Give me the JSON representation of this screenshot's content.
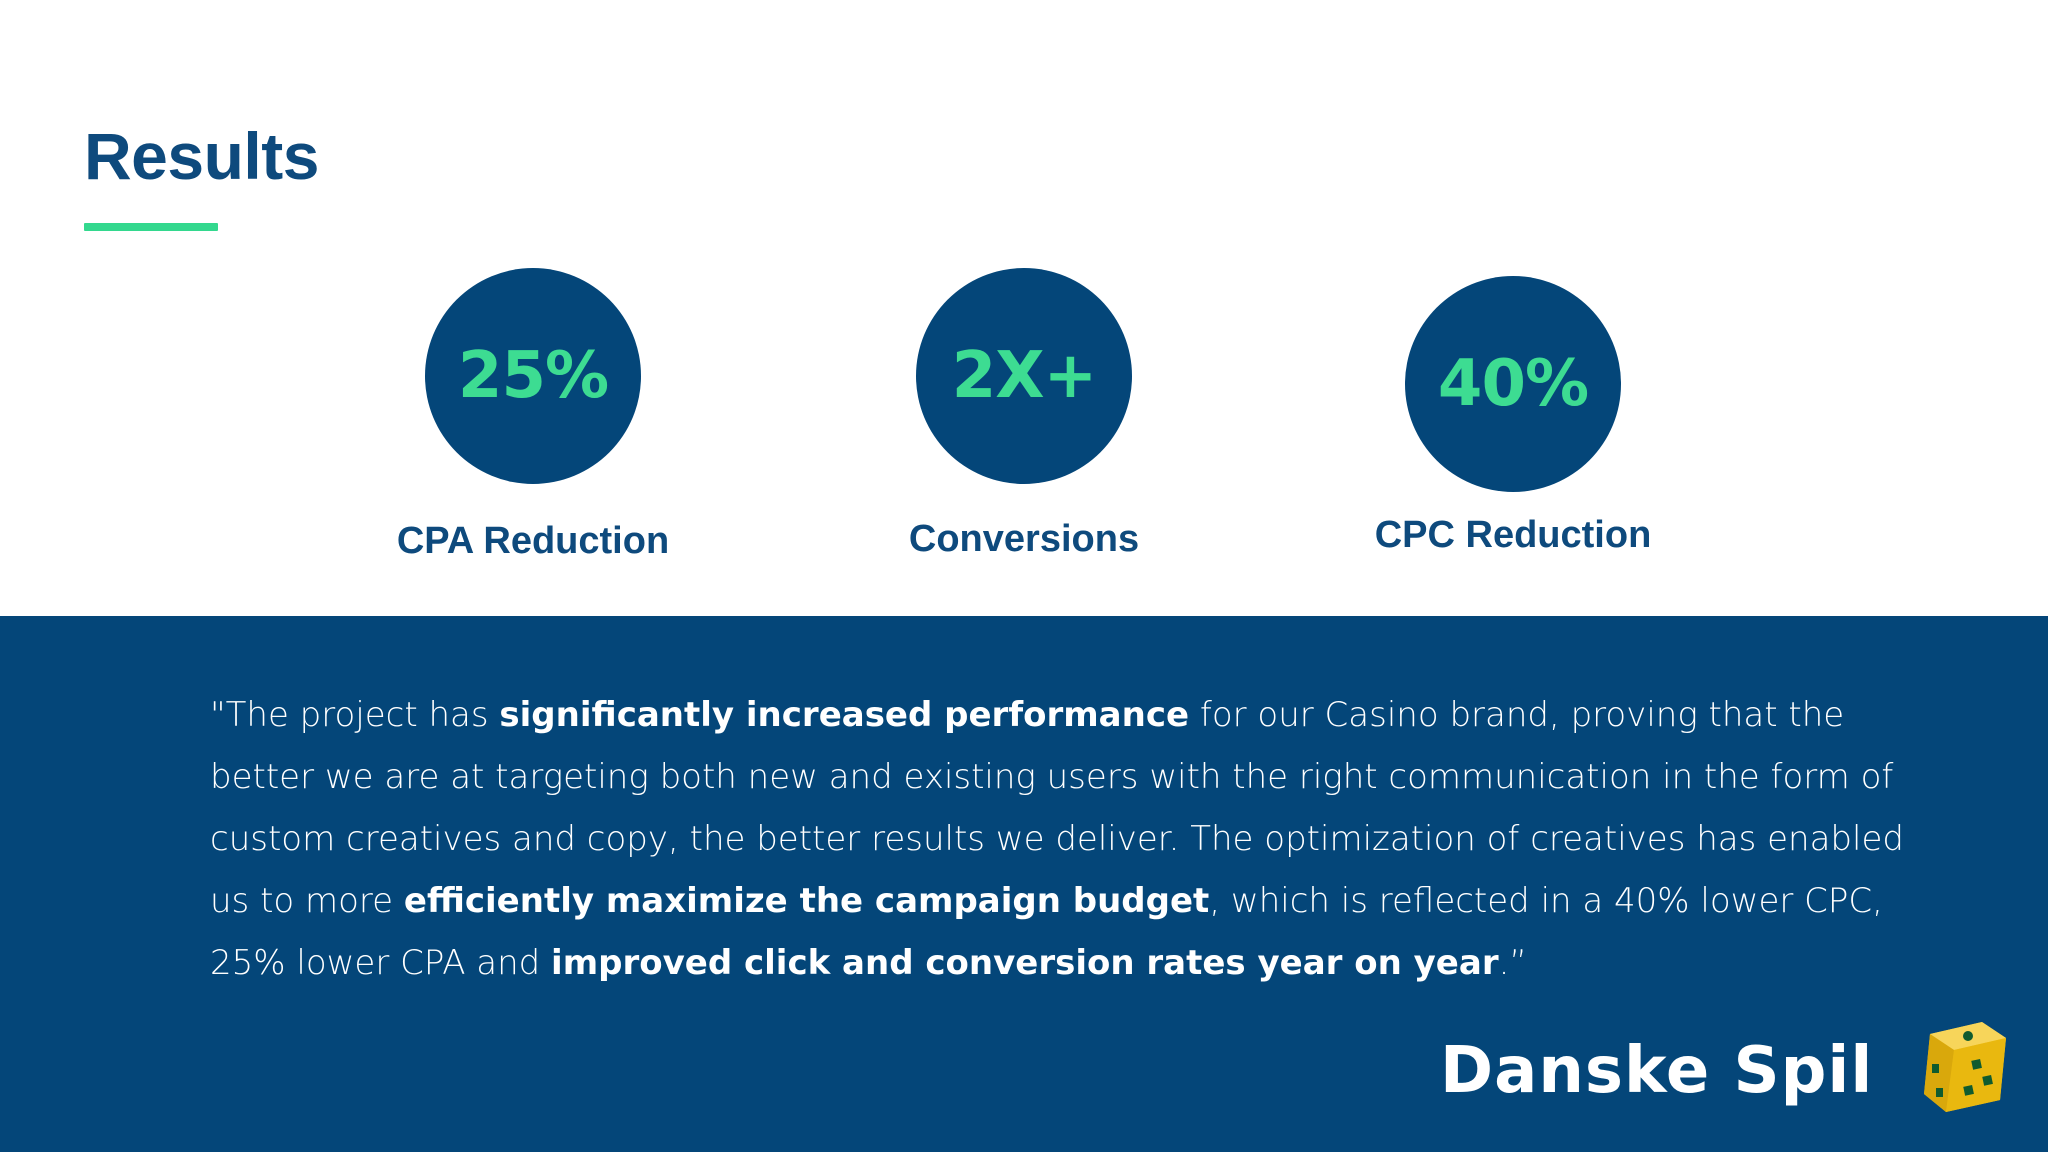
{
  "page": {
    "title": "Results"
  },
  "metrics": [
    {
      "value": "25%",
      "label": "CPA Reduction"
    },
    {
      "value": "2X+",
      "label": "Conversions"
    },
    {
      "value": "40%",
      "label": "CPC Reduction"
    }
  ],
  "quote": {
    "p1": "\"The project has ",
    "b1": "significantly increased performance",
    "p2": " for our Casino brand, proving that the better we are at targeting both new and existing users with the right communication in the form of custom creatives and copy, the better results we deliver. The optimization of creatives has enabled us to more ",
    "b2": "efficiently maximize the campaign budget",
    "p3": ", which is reflected in a 40% lower CPC, 25% lower CPA and ",
    "b3": "improved click and conversion rates year on year",
    "p4": ".”"
  },
  "brand": {
    "name": "Danske Spil",
    "logo_icon": "dice-icon"
  },
  "colors": {
    "navy": "#044679",
    "accent_green": "#3ddc92",
    "title_blue": "#0e4a7d",
    "logo_yellow": "#f2c21b"
  }
}
